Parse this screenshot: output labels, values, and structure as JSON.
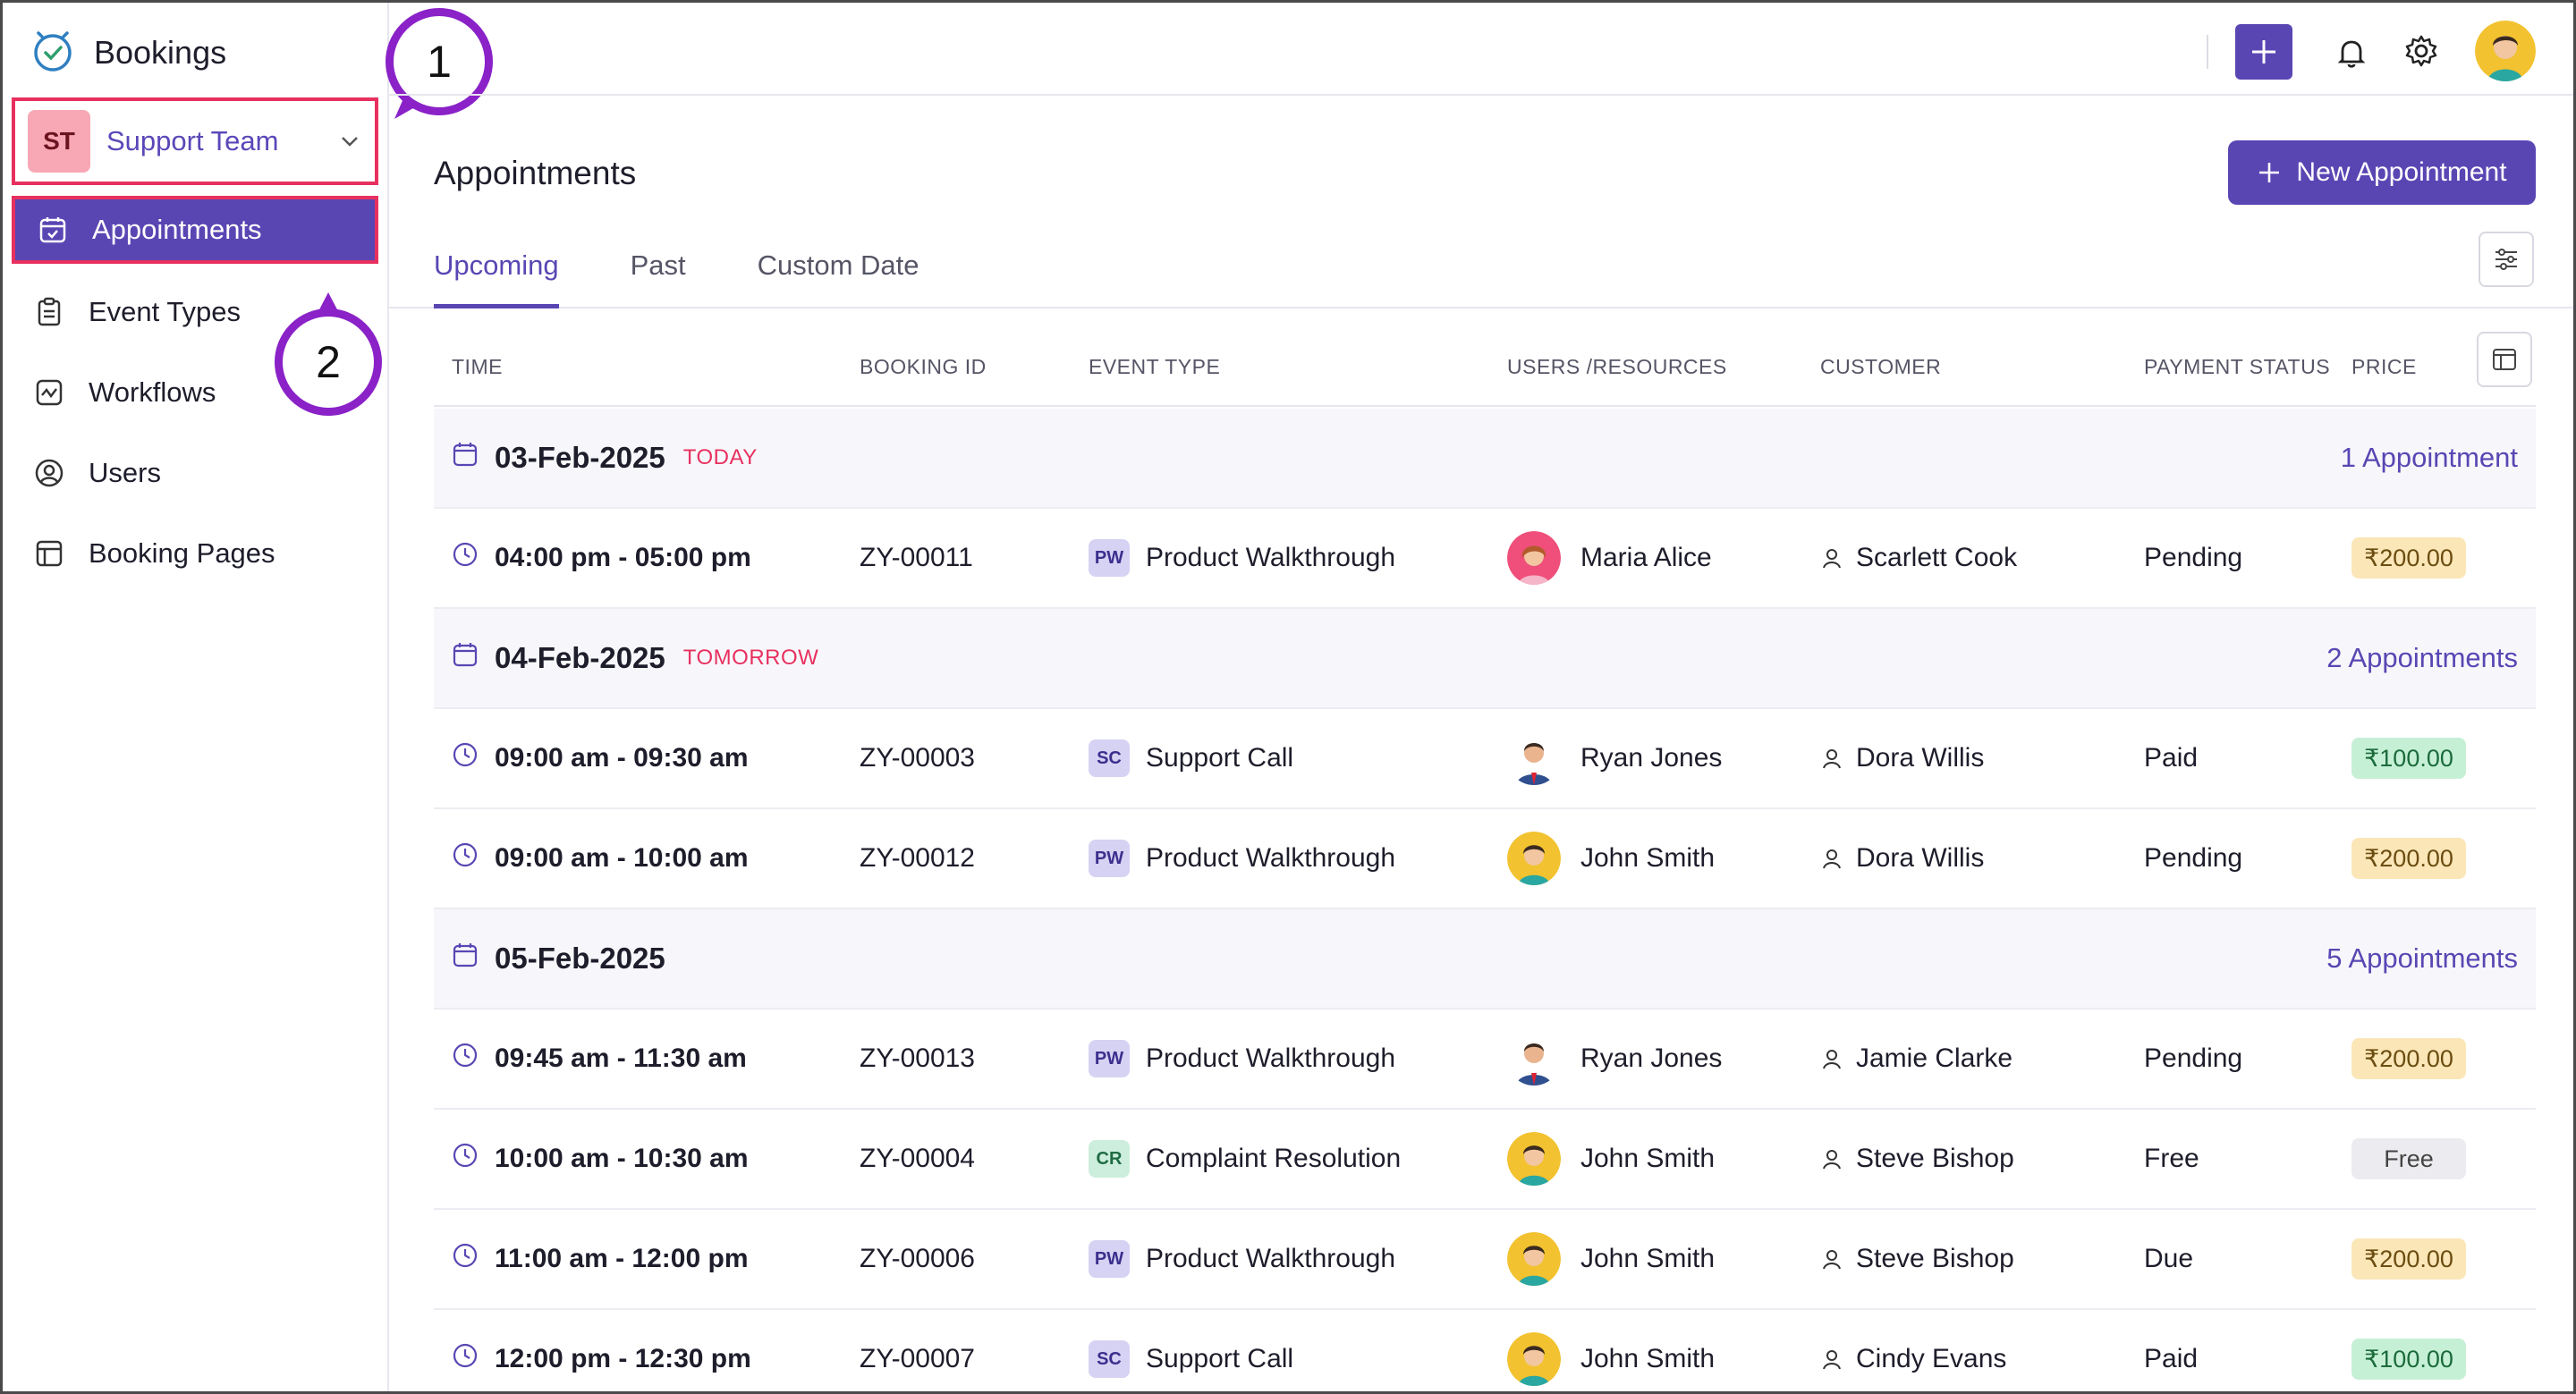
{
  "app": {
    "name": "Bookings"
  },
  "team": {
    "initials": "ST",
    "name": "Support Team"
  },
  "sidebar": {
    "items": [
      {
        "label": "Appointments",
        "icon": "calendar-check-icon"
      },
      {
        "label": "Event Types",
        "icon": "clipboard-icon"
      },
      {
        "label": "Workflows",
        "icon": "workflow-icon"
      },
      {
        "label": "Users",
        "icon": "user-circle-icon"
      },
      {
        "label": "Booking Pages",
        "icon": "booking-page-icon"
      }
    ]
  },
  "callouts": [
    "1",
    "2"
  ],
  "header": {
    "title": "Appointments",
    "new_button": "New Appointment"
  },
  "tabs": [
    "Upcoming",
    "Past",
    "Custom Date"
  ],
  "columns": [
    "TIME",
    "BOOKING ID",
    "EVENT TYPE",
    "USERS /RESOURCES",
    "CUSTOMER",
    "PAYMENT STATUS",
    "PRICE"
  ],
  "groups": [
    {
      "date": "03-Feb-2025",
      "tag": "TODAY",
      "count": "1 Appointment"
    },
    {
      "date": "04-Feb-2025",
      "tag": "TOMORROW",
      "count": "2 Appointments"
    },
    {
      "date": "05-Feb-2025",
      "tag": "",
      "count": "5 Appointments"
    }
  ],
  "appointments": [
    {
      "time": "04:00 pm - 05:00 pm",
      "id": "ZY-00011",
      "ev_code": "PW",
      "event": "Product Walkthrough",
      "user": "Maria Alice",
      "customer": "Scarlett Cook",
      "status": "Pending",
      "price": "₹200.00"
    },
    {
      "time": "09:00 am - 09:30 am",
      "id": "ZY-00003",
      "ev_code": "SC",
      "event": "Support Call",
      "user": "Ryan Jones",
      "customer": "Dora Willis",
      "status": "Paid",
      "price": "₹100.00"
    },
    {
      "time": "09:00 am - 10:00 am",
      "id": "ZY-00012",
      "ev_code": "PW",
      "event": "Product Walkthrough",
      "user": "John Smith",
      "customer": "Dora Willis",
      "status": "Pending",
      "price": "₹200.00"
    },
    {
      "time": "09:45 am - 11:30 am",
      "id": "ZY-00013",
      "ev_code": "PW",
      "event": "Product Walkthrough",
      "user": "Ryan Jones",
      "customer": "Jamie Clarke",
      "status": "Pending",
      "price": "₹200.00"
    },
    {
      "time": "10:00 am - 10:30 am",
      "id": "ZY-00004",
      "ev_code": "CR",
      "event": "Complaint Resolution",
      "user": "John Smith",
      "customer": "Steve Bishop",
      "status": "Free",
      "price": "Free"
    },
    {
      "time": "11:00 am - 12:00 pm",
      "id": "ZY-00006",
      "ev_code": "PW",
      "event": "Product Walkthrough",
      "user": "John Smith",
      "customer": "Steve Bishop",
      "status": "Due",
      "price": "₹200.00"
    },
    {
      "time": "12:00 pm - 12:30 pm",
      "id": "ZY-00007",
      "ev_code": "SC",
      "event": "Support Call",
      "user": "John Smith",
      "customer": "Cindy Evans",
      "status": "Paid",
      "price": "₹100.00"
    }
  ],
  "colors": {
    "accent": "#5a46b3",
    "highlight": "#e8305f",
    "callout": "#8a22c8"
  }
}
